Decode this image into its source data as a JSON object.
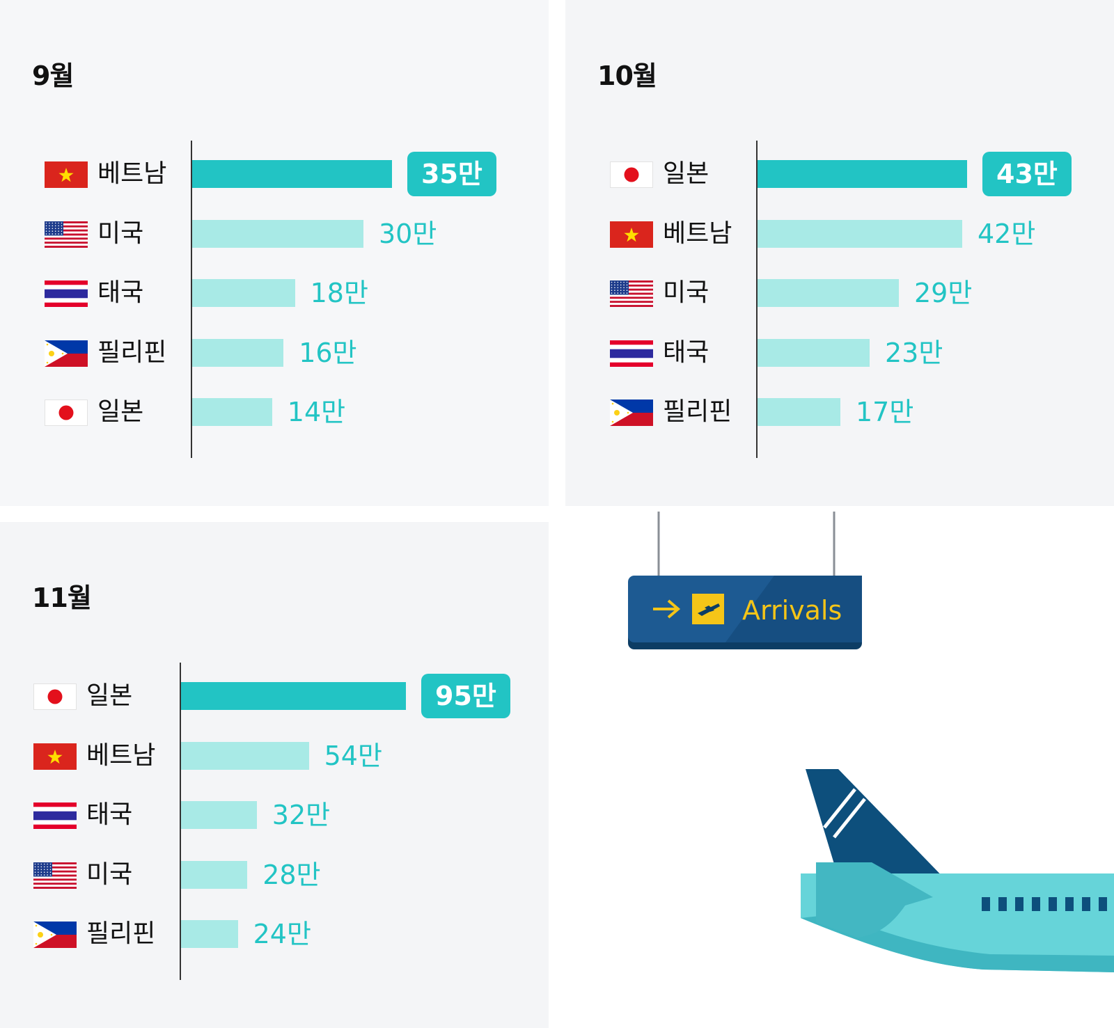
{
  "colors": {
    "top_bar": "#22c4c4",
    "bar": "#a8eae6",
    "value_text": "#22c4c4",
    "top_badge_text": "#ffffff"
  },
  "sign": {
    "text": "Arrivals",
    "icons": [
      "arrow-right-icon",
      "airplane-icon"
    ]
  },
  "chart_data": [
    {
      "type": "bar",
      "orientation": "horizontal",
      "title": "9월",
      "categories": [
        "베트남",
        "미국",
        "태국",
        "필리핀",
        "일본"
      ],
      "flags": [
        "vietnam-flag-icon",
        "usa-flag-icon",
        "thailand-flag-icon",
        "philippines-flag-icon",
        "japan-flag-icon"
      ],
      "values": [
        35,
        30,
        18,
        16,
        14
      ],
      "labels": [
        "35만",
        "30만",
        "18만",
        "16만",
        "14만"
      ],
      "highlight_index": 0
    },
    {
      "type": "bar",
      "orientation": "horizontal",
      "title": "10월",
      "categories": [
        "일본",
        "베트남",
        "미국",
        "태국",
        "필리핀"
      ],
      "flags": [
        "japan-flag-icon",
        "vietnam-flag-icon",
        "usa-flag-icon",
        "thailand-flag-icon",
        "philippines-flag-icon"
      ],
      "values": [
        43,
        42,
        29,
        23,
        17
      ],
      "labels": [
        "43만",
        "42만",
        "29만",
        "23만",
        "17만"
      ],
      "highlight_index": 0
    },
    {
      "type": "bar",
      "orientation": "horizontal",
      "title": "11월",
      "categories": [
        "일본",
        "베트남",
        "태국",
        "미국",
        "필리핀"
      ],
      "flags": [
        "japan-flag-icon",
        "vietnam-flag-icon",
        "thailand-flag-icon",
        "usa-flag-icon",
        "philippines-flag-icon"
      ],
      "values": [
        95,
        54,
        32,
        28,
        24
      ],
      "labels": [
        "95만",
        "54만",
        "32만",
        "28만",
        "24만"
      ],
      "highlight_index": 0
    }
  ]
}
